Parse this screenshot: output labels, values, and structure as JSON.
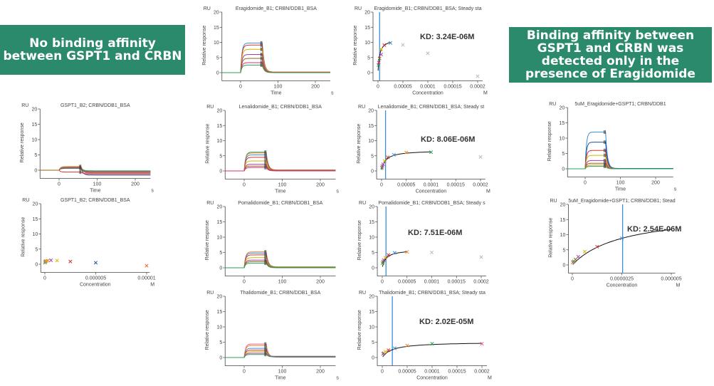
{
  "banners": {
    "left": "No binding affinity between  GSPT1 and CRBN",
    "right": "Binding affinity between GSPT1 and CRBN was detected only in the presence of Eragidomide"
  },
  "colors": {
    "banner": "#2b8a6b",
    "kd_line": "#3a8fd8",
    "fit": "#111111",
    "excluded": "#bbbbbb"
  },
  "chart_data": [
    {
      "type": "line",
      "title": "Eragidomide_B1; CRBN/DDB1_BSA",
      "ru": "RU",
      "ylabel": "Relative response",
      "xlabel": "Time",
      "xunit": "s",
      "xlim": [
        -50,
        240
      ],
      "ylim": [
        -2,
        20
      ],
      "xticks": [
        0,
        100,
        200
      ],
      "xtick_labels": [
        "0",
        "100",
        "200"
      ],
      "yticks": [
        0,
        5,
        10,
        15,
        20
      ],
      "ytick_labels": [
        "0",
        "5",
        "10",
        "15",
        "20"
      ],
      "series": [
        {
          "color": "#3a8fd8",
          "level": 9.8,
          "end": 0.2
        },
        {
          "color": "#d33333",
          "level": 9.1,
          "end": 0.2
        },
        {
          "color": "#d9b400",
          "level": 7.7,
          "end": 0.2
        },
        {
          "color": "#a03cb0",
          "level": 6.0,
          "end": 0.1
        },
        {
          "color": "#8a6a1a",
          "level": 4.7,
          "end": 0.1
        },
        {
          "color": "#e0307a",
          "level": 3.3,
          "end": 0.1
        },
        {
          "color": "#2aa050",
          "level": 2.5,
          "end": 0.0
        }
      ]
    },
    {
      "type": "scatter",
      "title": "Eragidomide_B1; CRBN/DDB1_BSA; Steady sta",
      "ru": "RU",
      "ylabel": "Relative response",
      "xlabel": "Concentration",
      "xunit": "M",
      "xlim": [
        -1e-05,
        0.00021
      ],
      "ylim": [
        -2,
        20
      ],
      "xticks": [
        0,
        5e-05,
        0.0001,
        0.00015,
        0.0002
      ],
      "xtick_labels": [
        "0",
        "0.00005",
        "0.0001",
        "0.00015",
        "0.0002"
      ],
      "yticks": [
        0,
        5,
        10,
        15,
        20
      ],
      "ytick_labels": [
        "0",
        "5",
        "10",
        "15",
        "20"
      ],
      "points": [
        {
          "x": 7.8e-07,
          "y": 2.5,
          "color": "#2aa050"
        },
        {
          "x": 1.6e-06,
          "y": 3.3,
          "color": "#e0307a"
        },
        {
          "x": 3.1e-06,
          "y": 4.7,
          "color": "#8a6a1a"
        },
        {
          "x": 6.3e-06,
          "y": 6.0,
          "color": "#a03cb0"
        },
        {
          "x": 6.3e-06,
          "y": 7.7,
          "color": "#d9b400"
        },
        {
          "x": 1.25e-05,
          "y": 9.1,
          "color": "#d33333"
        },
        {
          "x": 2.5e-05,
          "y": 9.8,
          "color": "#3a8fd8"
        },
        {
          "x": 5e-05,
          "y": 9.2,
          "color": "#bbbbbb"
        },
        {
          "x": 0.0001,
          "y": 6.4,
          "color": "#bbbbbb"
        },
        {
          "x": 0.0002,
          "y": -1.2,
          "color": "#bbbbbb"
        }
      ],
      "fit": {
        "kd": 3.24e-06,
        "rmax": 11.3,
        "xmin": 2e-07,
        "xmax": 2.5e-05
      },
      "kd_label": "KD: 3.24E-06M"
    },
    {
      "type": "line",
      "title": "GSPT1_B2; CRBN/DDB1_BSA",
      "ru": "RU",
      "ylabel": "Relative response",
      "xlabel": "Time",
      "xunit": "s",
      "xlim": [
        -50,
        240
      ],
      "ylim": [
        -2,
        20
      ],
      "xticks": [
        0,
        100,
        200
      ],
      "xtick_labels": [
        "0",
        "100",
        "200"
      ],
      "yticks": [
        0,
        5,
        10,
        15,
        20
      ],
      "ytick_labels": [
        "0",
        "5",
        "10",
        "15",
        "20"
      ],
      "series": [
        {
          "color": "#2050a0",
          "level": 0.6,
          "end": -1.6
        },
        {
          "color": "#d33333",
          "level": -0.6,
          "end": -1.2
        },
        {
          "color": "#f08a30",
          "level": 1.0,
          "end": -0.9
        },
        {
          "color": "#d9b400",
          "level": 1.2,
          "end": -0.6
        },
        {
          "color": "#a03cb0",
          "level": 0.9,
          "end": -0.4
        },
        {
          "color": "#2aa050",
          "level": 0.8,
          "end": -0.2
        },
        {
          "color": "#e86090",
          "level": 1.1,
          "end": -1.0
        },
        {
          "color": "#8a6a1a",
          "level": 0.7,
          "end": -0.7
        }
      ]
    },
    {
      "type": "scatter",
      "title": "GSPT1_B2; CRBN/DDB1_BSA",
      "ru": "RU",
      "ylabel": "Relative response",
      "xlabel": "Concentration",
      "xunit": "M",
      "xlim": [
        -4e-07,
        1.03e-05
      ],
      "ylim": [
        -2,
        20
      ],
      "xticks": [
        0,
        5e-06,
        1e-05
      ],
      "xtick_labels": [
        "0",
        "0.000005",
        "0.00001"
      ],
      "yticks": [
        0,
        5,
        10,
        15,
        20
      ],
      "ytick_labels": [
        "0",
        "5",
        "10",
        "15",
        "20"
      ],
      "points": [
        {
          "x": 2e-08,
          "y": 0.5,
          "color": "#2aa050"
        },
        {
          "x": 4e-08,
          "y": 0.9,
          "color": "#8a6a1a"
        },
        {
          "x": 8e-08,
          "y": 1.0,
          "color": "#e86090"
        },
        {
          "x": 1.6e-07,
          "y": 1.1,
          "color": "#d9b400"
        },
        {
          "x": 3e-07,
          "y": 1.2,
          "color": "#f08a30"
        },
        {
          "x": 6e-07,
          "y": 1.3,
          "color": "#a03cb0"
        },
        {
          "x": 1.2e-06,
          "y": 1.2,
          "color": "#d9b400"
        },
        {
          "x": 2.5e-06,
          "y": 0.9,
          "color": "#d33333"
        },
        {
          "x": 5e-06,
          "y": 0.5,
          "color": "#2050a0"
        },
        {
          "x": 1e-05,
          "y": -0.5,
          "color": "#f06030"
        }
      ]
    },
    {
      "type": "line",
      "title": "Lenalidomide_B1; CRBN/DDB1_BSA",
      "ru": "RU",
      "ylabel": "Relative response",
      "xlabel": "Time",
      "xunit": "s",
      "xlim": [
        -50,
        240
      ],
      "ylim": [
        -2,
        20
      ],
      "xticks": [
        0,
        100,
        200
      ],
      "xtick_labels": [
        "0",
        "100",
        "200"
      ],
      "yticks": [
        0,
        5,
        10,
        15,
        20
      ],
      "ytick_labels": [
        "0",
        "5",
        "10",
        "15",
        "20"
      ],
      "series": [
        {
          "color": "#2aa050",
          "level": 6.2,
          "end": 0.3
        },
        {
          "color": "#f08a30",
          "level": 5.9,
          "end": 0.3
        },
        {
          "color": "#3a8fd8",
          "level": 5.3,
          "end": 0.2
        },
        {
          "color": "#d33333",
          "level": 4.5,
          "end": 0.2
        },
        {
          "color": "#d9b400",
          "level": 3.3,
          "end": 0.1
        },
        {
          "color": "#a03cb0",
          "level": 2.2,
          "end": 0.1
        },
        {
          "color": "#8a6a1a",
          "level": 1.6,
          "end": 0.1
        },
        {
          "color": "#e0307a",
          "level": 1.1,
          "end": 0.0
        }
      ]
    },
    {
      "type": "scatter",
      "title": "Lenalidomide_B1; CRBN/DDB1_BSA; Steady st",
      "ru": "RU",
      "ylabel": "Relative response",
      "xlabel": "Concentration",
      "xunit": "M",
      "xlim": [
        -1e-05,
        0.00021
      ],
      "ylim": [
        -2,
        20
      ],
      "xticks": [
        0,
        5e-05,
        0.0001,
        0.00015,
        0.0002
      ],
      "xtick_labels": [
        "0",
        "0.00005",
        "0.0001",
        "0.00015",
        "0.0002"
      ],
      "yticks": [
        0,
        5,
        10,
        15,
        20
      ],
      "ytick_labels": [
        "0",
        "5",
        "10",
        "15",
        "20"
      ],
      "points": [
        {
          "x": 7.8e-07,
          "y": 1.1,
          "color": "#2aa050"
        },
        {
          "x": 1.6e-06,
          "y": 1.6,
          "color": "#e0307a"
        },
        {
          "x": 3.1e-06,
          "y": 2.2,
          "color": "#a03cb0"
        },
        {
          "x": 6.3e-06,
          "y": 3.3,
          "color": "#d9b400"
        },
        {
          "x": 1.25e-05,
          "y": 4.5,
          "color": "#d33333"
        },
        {
          "x": 2.5e-05,
          "y": 5.3,
          "color": "#3a8fd8"
        },
        {
          "x": 5e-05,
          "y": 6.1,
          "color": "#f08a30"
        },
        {
          "x": 0.0001,
          "y": 6.2,
          "color": "#2aa050"
        },
        {
          "x": 0.0002,
          "y": 4.6,
          "color": "#bbbbbb"
        }
      ],
      "fit": {
        "kd": 8.06e-06,
        "rmax": 6.8,
        "xmin": 5e-07,
        "xmax": 0.0001
      },
      "kd_label": "KD: 8.06E-06M"
    },
    {
      "type": "line",
      "title": "Pomalidomide_B1; CRBN/DDB1_BSA",
      "ru": "RU",
      "ylabel": "Relative response",
      "xlabel": "",
      "xunit": "",
      "xlim": [
        -50,
        240
      ],
      "ylim": [
        -2,
        20
      ],
      "xticks": [
        0,
        100,
        200
      ],
      "xtick_labels": [
        "0",
        "100",
        "200"
      ],
      "yticks": [
        0,
        5,
        10,
        15,
        20
      ],
      "ytick_labels": [
        "0",
        "5",
        "10",
        "15",
        "20"
      ],
      "series": [
        {
          "color": "#f08a30",
          "level": 5.2,
          "end": 0.3
        },
        {
          "color": "#3a8fd8",
          "level": 4.8,
          "end": 0.3
        },
        {
          "color": "#d33333",
          "level": 4.2,
          "end": 0.2
        },
        {
          "color": "#d9b400",
          "level": 3.3,
          "end": 0.2
        },
        {
          "color": "#a03cb0",
          "level": 2.5,
          "end": 0.1
        },
        {
          "color": "#8a6a1a",
          "level": 2.0,
          "end": 0.1
        },
        {
          "color": "#2aa050",
          "level": 1.5,
          "end": 0.0
        }
      ]
    },
    {
      "type": "scatter",
      "title": "Pomalidomide_B1; CRBN/DDB1_BSA; Steady s",
      "ru": "RU",
      "ylabel": "Relative response",
      "xlabel": "",
      "xunit": "",
      "xlim": [
        -1e-05,
        0.00021
      ],
      "ylim": [
        -2,
        20
      ],
      "xticks": [
        0,
        5e-05,
        0.0001,
        0.00015,
        0.0002
      ],
      "xtick_labels": [
        "0",
        "0.00005",
        "0.0001",
        "0.00015",
        "0.0002"
      ],
      "yticks": [
        0,
        5,
        10,
        15,
        20
      ],
      "ytick_labels": [
        "0",
        "5",
        "10",
        "15",
        "20"
      ],
      "points": [
        {
          "x": 7.8e-07,
          "y": 1.5,
          "color": "#2aa050"
        },
        {
          "x": 1.6e-06,
          "y": 2.0,
          "color": "#8a6a1a"
        },
        {
          "x": 3.1e-06,
          "y": 2.5,
          "color": "#a03cb0"
        },
        {
          "x": 6.3e-06,
          "y": 3.3,
          "color": "#d9b400"
        },
        {
          "x": 1.25e-05,
          "y": 4.2,
          "color": "#d33333"
        },
        {
          "x": 2.5e-05,
          "y": 4.9,
          "color": "#3a8fd8"
        },
        {
          "x": 5e-05,
          "y": 5.2,
          "color": "#f08a30"
        },
        {
          "x": 0.0001,
          "y": 5.0,
          "color": "#bbbbbb"
        },
        {
          "x": 0.0002,
          "y": 3.5,
          "color": "#bbbbbb"
        }
      ],
      "fit": {
        "kd": 7.51e-06,
        "rmax": 6.0,
        "xmin": 5e-07,
        "xmax": 5e-05
      },
      "kd_label": "KD: 7.51E-06M"
    },
    {
      "type": "line",
      "title": "Thalidomide_B1; CRBN/DDB1_BSA",
      "ru": "RU",
      "ylabel": "Relative response",
      "xlabel": "Time",
      "xunit": "s",
      "xlim": [
        -50,
        240
      ],
      "ylim": [
        -2,
        20
      ],
      "xticks": [
        0,
        100,
        200
      ],
      "xtick_labels": [
        "0",
        "100",
        "200"
      ],
      "yticks": [
        0,
        5,
        10,
        15,
        20
      ],
      "ytick_labels": [
        "0",
        "5",
        "10",
        "15",
        "20"
      ],
      "series": [
        {
          "color": "#e86090",
          "level": 4.4,
          "end": 0.1
        },
        {
          "color": "#f08a30",
          "level": 3.9,
          "end": 0.2
        },
        {
          "color": "#3a8fd8",
          "level": 3.0,
          "end": 0.2
        },
        {
          "color": "#d33333",
          "level": 2.4,
          "end": 0.2
        },
        {
          "color": "#d9b400",
          "level": 1.9,
          "end": 0.3
        },
        {
          "color": "#a03cb0",
          "level": 1.4,
          "end": 0.4
        },
        {
          "color": "#2aa050",
          "level": 1.0,
          "end": 0.2
        }
      ]
    },
    {
      "type": "scatter",
      "title": "Thalidomide_B1; CRBN/DDB1_BSA; Steady sta",
      "ru": "RU",
      "ylabel": "Relative response",
      "xlabel": "Concentration",
      "xunit": "M",
      "xlim": [
        -1e-05,
        0.00021
      ],
      "ylim": [
        -2,
        20
      ],
      "xticks": [
        0,
        5e-05,
        0.0001,
        0.00015,
        0.0002
      ],
      "xtick_labels": [
        "0",
        "0.00005",
        "0.0001",
        "0.00015",
        "0.0002"
      ],
      "yticks": [
        0,
        5,
        10,
        15,
        20
      ],
      "ytick_labels": [
        "0",
        "5",
        "10",
        "15",
        "20"
      ],
      "points": [
        {
          "x": 1.6e-06,
          "y": 1.2,
          "color": "#8a6a1a"
        },
        {
          "x": 3.1e-06,
          "y": 1.4,
          "color": "#a03cb0"
        },
        {
          "x": 6.3e-06,
          "y": 1.9,
          "color": "#d9b400"
        },
        {
          "x": 1.25e-05,
          "y": 2.4,
          "color": "#d33333"
        },
        {
          "x": 2.5e-05,
          "y": 3.0,
          "color": "#3a8fd8"
        },
        {
          "x": 5e-05,
          "y": 3.9,
          "color": "#f08a30"
        },
        {
          "x": 0.0001,
          "y": 4.5,
          "color": "#2aa050"
        },
        {
          "x": 0.0002,
          "y": 4.5,
          "color": "#e86090"
        }
      ],
      "fit": {
        "kd": 2.02e-05,
        "rmax": 5.1,
        "xmin": 1e-06,
        "xmax": 0.0002
      },
      "kd_label": "KD: 2.02E-05M"
    },
    {
      "type": "line",
      "title": "5uM_Eragidomide+GSPT1; CRBN/DDB1",
      "ru": "RU",
      "ylabel": "Relative response",
      "xlabel": "Time",
      "xunit": "s",
      "xlim": [
        -50,
        250
      ],
      "ylim": [
        -2,
        20
      ],
      "xticks": [
        0,
        100,
        200
      ],
      "xtick_labels": [
        "0",
        "100",
        "200"
      ],
      "yticks": [
        0,
        5,
        10,
        15,
        20
      ],
      "ytick_labels": [
        "0",
        "5",
        "10",
        "15",
        "20"
      ],
      "series": [
        {
          "color": "#3a8fd8",
          "level": 12.0,
          "end": 0.1
        },
        {
          "color": "#2050a0",
          "level": 8.7,
          "end": 0.1
        },
        {
          "color": "#d33333",
          "level": 6.0,
          "end": 0.0
        },
        {
          "color": "#d9b400",
          "level": 4.4,
          "end": 0.0
        },
        {
          "color": "#a03cb0",
          "level": 2.7,
          "end": 0.0
        },
        {
          "color": "#8a6a1a",
          "level": 1.8,
          "end": 0.0
        },
        {
          "color": "#f08a30",
          "level": 1.2,
          "end": 0.0
        },
        {
          "color": "#2aa050",
          "level": 0.8,
          "end": 0.0
        }
      ]
    },
    {
      "type": "scatter",
      "title": "5uM_Eragidomide+GSPT1; CRBN/DDB1; Stead",
      "ru": "RU",
      "ylabel": "Relative response",
      "xlabel": "Concentration",
      "xunit": "M",
      "xlim": [
        -2e-07,
        5.2e-06
      ],
      "ylim": [
        -2,
        20
      ],
      "xticks": [
        0,
        2.5e-06,
        5e-06
      ],
      "xtick_labels": [
        "0",
        "0.0000025",
        "0.000005"
      ],
      "yticks": [
        0,
        5,
        10,
        15,
        20
      ],
      "ytick_labels": [
        "0",
        "5",
        "10",
        "15",
        "20"
      ],
      "points": [
        {
          "x": 2e-08,
          "y": 0.8,
          "color": "#f08a30"
        },
        {
          "x": 4e-08,
          "y": 1.0,
          "color": "#e86090"
        },
        {
          "x": 8e-08,
          "y": 1.2,
          "color": "#2aa050"
        },
        {
          "x": 1.6e-07,
          "y": 1.8,
          "color": "#8a6a1a"
        },
        {
          "x": 3e-07,
          "y": 2.7,
          "color": "#a03cb0"
        },
        {
          "x": 6.25e-07,
          "y": 4.4,
          "color": "#d9b400"
        },
        {
          "x": 1.25e-06,
          "y": 6.0,
          "color": "#d33333"
        },
        {
          "x": 2.5e-06,
          "y": 8.8,
          "color": "#3a8fd8"
        }
      ],
      "fit": {
        "kd": 2.54e-06,
        "rmax": 17.7,
        "xmin": 2e-08,
        "xmax": 5e-06
      },
      "kd_label": "KD: 2.54E-06M"
    }
  ]
}
